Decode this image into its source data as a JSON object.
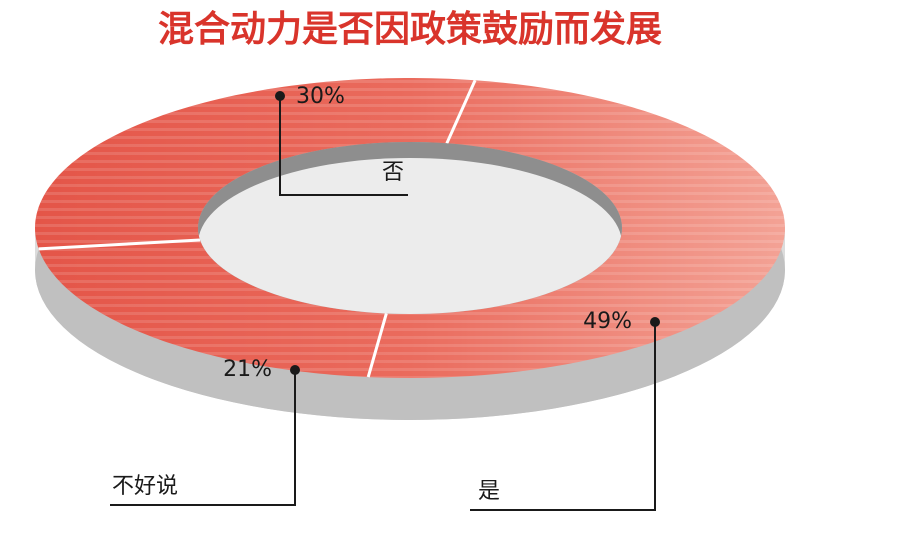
{
  "chart_data": {
    "type": "pie",
    "title": "混合动力是否因政策鼓励而发展",
    "categories": [
      "是",
      "不好说",
      "否"
    ],
    "values": [
      49,
      21,
      30
    ],
    "value_labels": [
      "49%",
      "21%",
      "30%"
    ],
    "donut": true
  }
}
